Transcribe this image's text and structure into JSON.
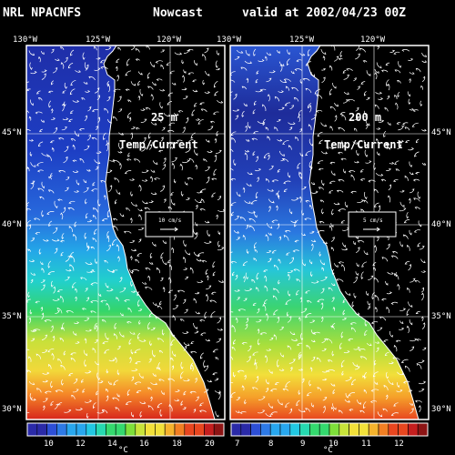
{
  "header": {
    "model": "NRL NPACNFS",
    "product": "Nowcast",
    "valid": "valid at 2002/04/23 00Z"
  },
  "lon_labels": [
    "130°W",
    "125°W",
    "120°W"
  ],
  "lat_labels": [
    "45°N",
    "40°N",
    "35°N",
    "30°N"
  ],
  "panels": [
    {
      "depth": "25 m",
      "field": "Temp/Current",
      "vector_scale": "10 cm/s",
      "colorbar": {
        "ticks": [
          "10",
          "12",
          "14",
          "16",
          "18",
          "20"
        ],
        "unit": "°C",
        "min": 8.8,
        "max": 20.5
      }
    },
    {
      "depth": "200 m",
      "field": "Temp/Current",
      "vector_scale": "5 cm/s",
      "colorbar": {
        "ticks": [
          "7",
          "8",
          "9",
          "10",
          "11",
          "12"
        ],
        "unit": "°C",
        "min": 6.6,
        "max": 12.6
      }
    }
  ],
  "colors": {
    "background": "#000000",
    "land": "#000000",
    "frame": "#ffffff",
    "arrows": "#ffffff",
    "palette": [
      "#2a2aa8",
      "#2d4fd6",
      "#2d7ae6",
      "#28a7ee",
      "#22c8e2",
      "#26d9b0",
      "#34d96e",
      "#7ee03a",
      "#c8e43a",
      "#f2e13a",
      "#f5b32d",
      "#f27f23",
      "#e8461f",
      "#c51e1e",
      "#8d1414"
    ]
  }
}
